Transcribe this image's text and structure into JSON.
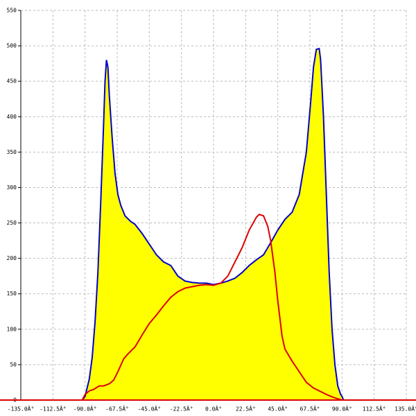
{
  "chart_data": {
    "type": "area-line",
    "xlim": [
      -135,
      135
    ],
    "xticks": [
      {
        "value": -135,
        "label": "-135.0Â°"
      },
      {
        "value": -112.5,
        "label": "-112.5Â°"
      },
      {
        "value": -90,
        "label": "-90.0Â°"
      },
      {
        "value": -67.5,
        "label": "-67.5Â°"
      },
      {
        "value": -45,
        "label": "-45.0Â°"
      },
      {
        "value": -22.5,
        "label": "-22.5Â°"
      },
      {
        "value": 0,
        "label": "0.0Â°"
      },
      {
        "value": 22.5,
        "label": "22.5Â°"
      },
      {
        "value": 45,
        "label": "45.0Â°"
      },
      {
        "value": 67.5,
        "label": "67.5Â°"
      },
      {
        "value": 90,
        "label": "90.0Â°"
      },
      {
        "value": 112.5,
        "label": "112.5Â°"
      },
      {
        "value": 135,
        "label": "135.0Â°"
      }
    ],
    "ylim": [
      0,
      550
    ],
    "yticks": [
      0,
      50,
      100,
      150,
      200,
      250,
      300,
      350,
      400,
      450,
      500,
      550
    ],
    "grid": true,
    "series": [
      {
        "color": "#0000cc",
        "fill": "#ffff00",
        "x": [
          -92,
          -90,
          -87,
          -85,
          -83,
          -81,
          -79,
          -77,
          -76,
          -75,
          -74,
          -73,
          -71,
          -69,
          -67,
          -65,
          -62,
          -58,
          -55,
          -50,
          -45,
          -40,
          -35,
          -30,
          -25,
          -20,
          -15,
          -10,
          -5,
          0,
          5,
          10,
          15,
          20,
          25,
          30,
          35,
          40,
          45,
          50,
          55,
          60,
          65,
          68,
          70,
          72,
          74,
          75,
          77,
          79,
          81,
          83,
          85,
          87,
          89,
          90,
          91
        ],
        "values": [
          0,
          5,
          30,
          60,
          110,
          180,
          280,
          390,
          450,
          480,
          470,
          430,
          370,
          320,
          290,
          275,
          260,
          252,
          248,
          235,
          220,
          205,
          195,
          190,
          175,
          168,
          166,
          165,
          165,
          163,
          165,
          168,
          172,
          180,
          190,
          198,
          205,
          222,
          240,
          255,
          265,
          290,
          350,
          420,
          470,
          495,
          496,
          480,
          400,
          290,
          180,
          100,
          50,
          20,
          8,
          5,
          0
        ]
      },
      {
        "color": "#dd0000",
        "x": [
          -92,
          -90,
          -87,
          -84,
          -80,
          -77,
          -73,
          -70,
          -67,
          -63,
          -60,
          -55,
          -50,
          -45,
          -40,
          -35,
          -30,
          -25,
          -20,
          -15,
          -10,
          -5,
          0,
          5,
          10,
          15,
          20,
          25,
          30,
          32,
          35,
          38,
          40,
          43,
          45,
          48,
          50,
          55,
          60,
          65,
          70,
          75,
          80,
          85,
          90
        ],
        "values": [
          0,
          8,
          13,
          15,
          20,
          20,
          23,
          28,
          40,
          58,
          65,
          75,
          92,
          108,
          120,
          133,
          145,
          153,
          158,
          160,
          162,
          163,
          162,
          165,
          175,
          195,
          215,
          240,
          258,
          262,
          260,
          245,
          225,
          180,
          140,
          90,
          72,
          55,
          40,
          25,
          17,
          12,
          7,
          3,
          0
        ]
      }
    ]
  }
}
